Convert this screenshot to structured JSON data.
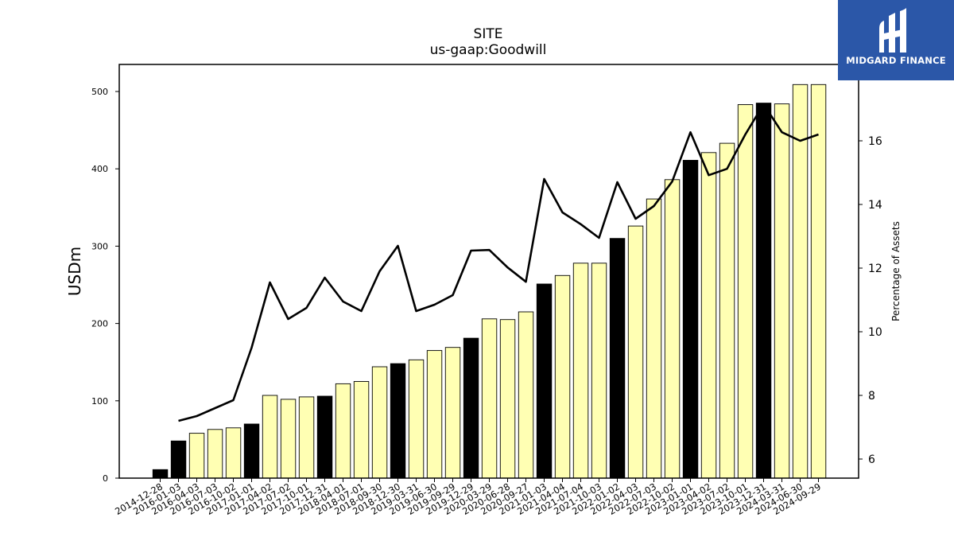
{
  "chart_data": {
    "type": "bar",
    "title": "SITE",
    "subtitle": "us-gaap:Goodwill",
    "ylabel": "USDm",
    "y2label": "Percentage of Assets",
    "ylim": [
      0,
      535
    ],
    "y2lim": [
      5.4,
      18.4
    ],
    "yticks": [
      0,
      100,
      200,
      300,
      400,
      500
    ],
    "y2ticks": [
      6,
      8,
      10,
      12,
      14,
      16
    ],
    "categories": [
      "2014-12-28",
      "2016-01-03",
      "2016-04-03",
      "2016-07-03",
      "2016-10-02",
      "2017-01-01",
      "2017-04-02",
      "2017-07-02",
      "2017-10-01",
      "2017-12-31",
      "2018-04-01",
      "2018-07-01",
      "2018-09-30",
      "2018-12-30",
      "2019-03-31",
      "2019-06-30",
      "2019-09-29",
      "2019-12-29",
      "2020-03-29",
      "2020-06-28",
      "2020-09-27",
      "2021-01-03",
      "2021-04-04",
      "2021-07-04",
      "2021-10-03",
      "2022-01-02",
      "2022-04-03",
      "2022-07-03",
      "2022-10-02",
      "2023-01-01",
      "2023-04-02",
      "2023-07-02",
      "2023-10-01",
      "2023-12-31",
      "2024-03-31",
      "2024-06-30",
      "2024-09-29"
    ],
    "series": [
      {
        "type": "bar",
        "values": [
          11,
          48,
          58,
          63,
          65,
          70,
          107,
          102,
          105,
          106,
          122,
          125,
          144,
          148,
          153,
          165,
          169,
          181,
          206,
          205,
          215,
          251,
          262,
          278,
          278,
          310,
          326,
          361,
          386,
          411,
          421,
          433,
          483,
          485,
          484,
          509,
          509
        ],
        "colors": [
          "#000000",
          "#000000",
          "#ffffb3",
          "#ffffb3",
          "#ffffb3",
          "#000000",
          "#ffffb3",
          "#ffffb3",
          "#ffffb3",
          "#000000",
          "#ffffb3",
          "#ffffb3",
          "#ffffb3",
          "#000000",
          "#ffffb3",
          "#ffffb3",
          "#ffffb3",
          "#000000",
          "#ffffb3",
          "#ffffb3",
          "#ffffb3",
          "#000000",
          "#ffffb3",
          "#ffffb3",
          "#ffffb3",
          "#000000",
          "#ffffb3",
          "#ffffb3",
          "#ffffb3",
          "#000000",
          "#ffffb3",
          "#ffffb3",
          "#ffffb3",
          "#000000",
          "#ffffb3",
          "#ffffb3",
          "#ffffb3"
        ]
      },
      {
        "type": "line",
        "axis": "right",
        "color": "#000000",
        "values": [
          null,
          7.2,
          7.35,
          7.6,
          7.85,
          9.5,
          11.55,
          10.4,
          10.75,
          11.7,
          10.95,
          10.65,
          11.9,
          12.7,
          10.65,
          10.85,
          11.15,
          12.55,
          12.57,
          12.02,
          11.57,
          14.8,
          13.75,
          13.38,
          12.95,
          14.7,
          13.55,
          13.95,
          14.72,
          16.27,
          14.92,
          15.12,
          16.2,
          17.15,
          16.27,
          16.0,
          16.2
        ]
      }
    ],
    "grid": false,
    "legend": "none"
  },
  "logo": {
    "text": "MIDGARD FINANCE",
    "color": "#2b57a8"
  }
}
